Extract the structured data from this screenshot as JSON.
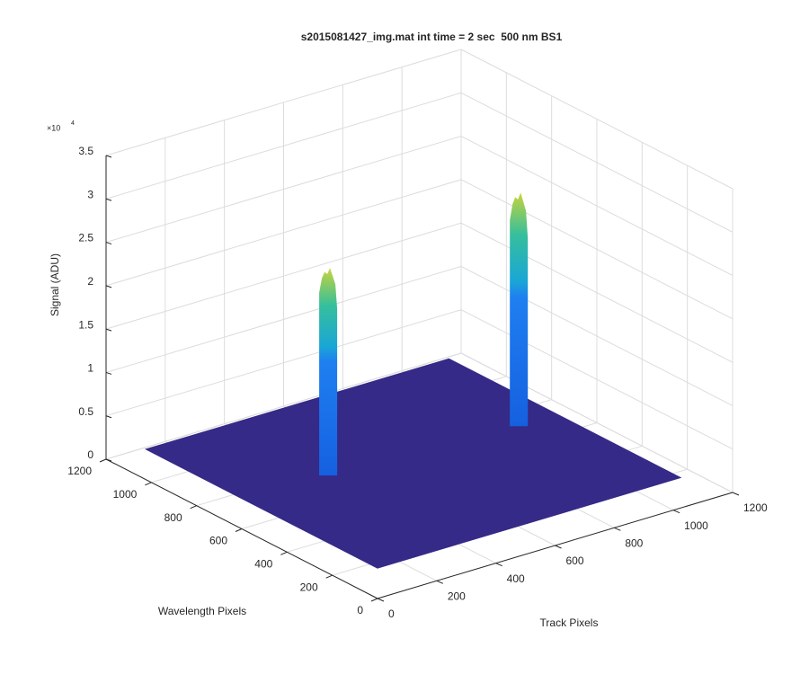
{
  "chart_data": {
    "type": "surface",
    "title": "s2015081427_img.mat int time = 2 sec  500 nm BS1",
    "xlabel": "Track Pixels",
    "ylabel": "Wavelength Pixels",
    "zlabel": "Signal (ADU)",
    "z_multiplier": "×10",
    "z_multiplier_power": "4",
    "xlim": [
      0,
      1200
    ],
    "ylim": [
      0,
      1200
    ],
    "zlim": [
      0,
      35000
    ],
    "xticks": [
      0,
      200,
      400,
      600,
      800,
      1000,
      1200
    ],
    "yticks": [
      0,
      200,
      400,
      600,
      800,
      1000,
      1200
    ],
    "zticks": [
      0,
      {
        "value": 5000,
        "label": "0.5"
      },
      {
        "value": 10000,
        "label": "1"
      },
      {
        "value": 15000,
        "label": "1.5"
      },
      {
        "value": 20000,
        "label": "2"
      },
      {
        "value": 25000,
        "label": "2.5"
      },
      {
        "value": 30000,
        "label": "3"
      },
      {
        "value": 35000,
        "label": "3.5"
      }
    ],
    "grid": true,
    "surface": {
      "track_range": [
        0,
        1024
      ],
      "wavelength_range": [
        0,
        1024
      ],
      "signal": 3500,
      "color": "#352a87"
    },
    "peaks": [
      {
        "track": 295,
        "wavelength": 604,
        "signal": 27000
      },
      {
        "track": 908,
        "wavelength": 563,
        "signal": 30000
      }
    ]
  }
}
